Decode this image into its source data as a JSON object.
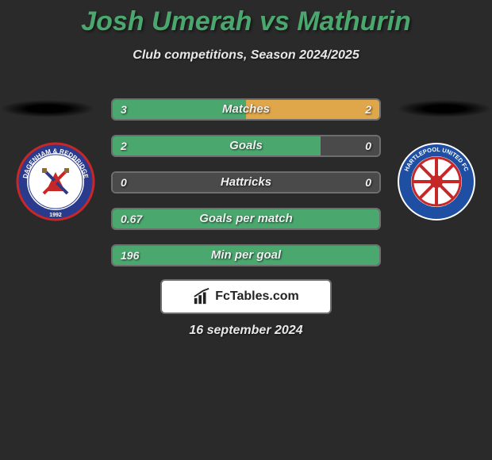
{
  "title": "Josh Umerah vs Mathurin",
  "subtitle": "Club competitions, Season 2024/2025",
  "date": "16 september 2024",
  "brand": "FcTables.com",
  "colors": {
    "left_fill": "#4aa86f",
    "right_fill": "#e0a64a",
    "bar_bg": "#4a4a4a",
    "bar_border": "#6e6e6e",
    "page_bg": "#2a2a2a",
    "title_color": "#4aa86f",
    "text_color": "#e8e8e8"
  },
  "left_team": {
    "name": "Dagenham & Redbridge FC",
    "badge_primary": "#2a3a8c",
    "badge_secondary": "#c62828",
    "badge_year": "1992"
  },
  "right_team": {
    "name": "Hartlepool United FC",
    "badge_primary": "#1e4fa3",
    "badge_secondary": "#c62828",
    "badge_accent": "#ffffff"
  },
  "stats": [
    {
      "label": "Matches",
      "left_val": "3",
      "right_val": "2",
      "left_pct": 50,
      "right_pct": 50
    },
    {
      "label": "Goals",
      "left_val": "2",
      "right_val": "0",
      "left_pct": 78,
      "right_pct": 0
    },
    {
      "label": "Hattricks",
      "left_val": "0",
      "right_val": "0",
      "left_pct": 0,
      "right_pct": 0
    },
    {
      "label": "Goals per match",
      "left_val": "0.67",
      "right_val": "",
      "left_pct": 100,
      "right_pct": 0
    },
    {
      "label": "Min per goal",
      "left_val": "196",
      "right_val": "",
      "left_pct": 100,
      "right_pct": 0
    }
  ]
}
